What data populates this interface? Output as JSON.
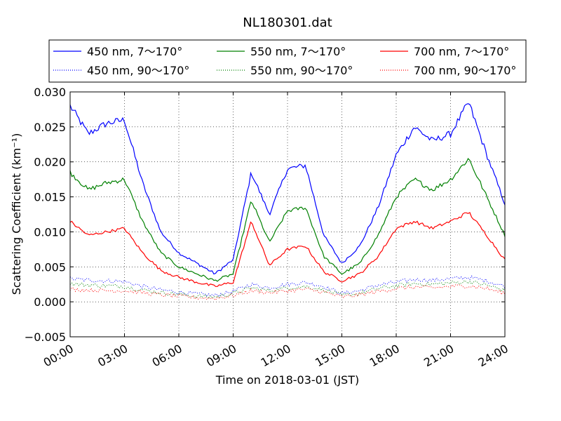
{
  "chart_data": {
    "type": "line",
    "title": "NL180301.dat",
    "xlabel": "Time on 2018-03-01 (JST)",
    "ylabel": "Scattering Coefficient (km⁻¹)",
    "xlim": [
      "00:00",
      "24:00"
    ],
    "ylim": [
      -0.005,
      0.03
    ],
    "x_ticks": [
      "00:00",
      "03:00",
      "06:00",
      "09:00",
      "12:00",
      "15:00",
      "18:00",
      "21:00",
      "24:00"
    ],
    "y_ticks": [
      "−0.005",
      "0.000",
      "0.005",
      "0.010",
      "0.015",
      "0.020",
      "0.025",
      "0.030"
    ],
    "grid": true,
    "legend_position": "top",
    "x": [
      "00:00",
      "01:00",
      "02:00",
      "03:00",
      "04:00",
      "05:00",
      "06:00",
      "07:00",
      "08:00",
      "09:00",
      "10:00",
      "11:00",
      "12:00",
      "13:00",
      "14:00",
      "15:00",
      "16:00",
      "17:00",
      "18:00",
      "19:00",
      "20:00",
      "21:00",
      "22:00",
      "23:00",
      "24:00"
    ],
    "series": [
      {
        "name": "450 nm, 7～170°",
        "color": "#0000ff",
        "style": "solid",
        "values": [
          0.028,
          0.024,
          0.0255,
          0.026,
          0.017,
          0.01,
          0.007,
          0.0055,
          0.004,
          0.006,
          0.0185,
          0.0125,
          0.019,
          0.0195,
          0.0095,
          0.0055,
          0.008,
          0.0135,
          0.021,
          0.025,
          0.023,
          0.024,
          0.0285,
          0.021,
          0.014
        ]
      },
      {
        "name": "450 nm, 90～170°",
        "color": "#0000ff",
        "style": "dotted",
        "values": [
          0.0033,
          0.0031,
          0.003,
          0.0029,
          0.0022,
          0.0017,
          0.0014,
          0.0011,
          0.0009,
          0.0015,
          0.0025,
          0.002,
          0.0025,
          0.0028,
          0.0022,
          0.0012,
          0.0016,
          0.0024,
          0.0028,
          0.0032,
          0.0031,
          0.0033,
          0.0035,
          0.003,
          0.0022
        ]
      },
      {
        "name": "550 nm, 7～170°",
        "color": "#008000",
        "style": "solid",
        "values": [
          0.0185,
          0.016,
          0.017,
          0.0175,
          0.0115,
          0.007,
          0.005,
          0.004,
          0.003,
          0.004,
          0.0145,
          0.0085,
          0.013,
          0.0135,
          0.0065,
          0.004,
          0.0055,
          0.0095,
          0.015,
          0.0175,
          0.016,
          0.0175,
          0.0205,
          0.015,
          0.0095
        ]
      },
      {
        "name": "550 nm, 90～170°",
        "color": "#008000",
        "style": "dotted",
        "values": [
          0.0026,
          0.0024,
          0.0023,
          0.0022,
          0.0017,
          0.0013,
          0.0011,
          0.0008,
          0.0007,
          0.0012,
          0.002,
          0.0016,
          0.002,
          0.0022,
          0.0017,
          0.0009,
          0.0012,
          0.0019,
          0.0023,
          0.0026,
          0.0025,
          0.0027,
          0.0029,
          0.0024,
          0.0016
        ]
      },
      {
        "name": "700 nm, 7～170°",
        "color": "#ff0000",
        "style": "solid",
        "values": [
          0.0115,
          0.0095,
          0.01,
          0.0105,
          0.007,
          0.0045,
          0.0035,
          0.0028,
          0.0022,
          0.0028,
          0.0115,
          0.0052,
          0.0075,
          0.008,
          0.0043,
          0.003,
          0.004,
          0.0065,
          0.0105,
          0.0115,
          0.0105,
          0.0115,
          0.0128,
          0.0095,
          0.006
        ]
      },
      {
        "name": "700 nm, 90～170°",
        "color": "#ff0000",
        "style": "dotted",
        "values": [
          0.0018,
          0.0017,
          0.0016,
          0.0016,
          0.0013,
          0.001,
          0.0008,
          0.0006,
          0.0005,
          0.0009,
          0.0016,
          0.0013,
          0.0016,
          0.0018,
          0.0014,
          0.0007,
          0.001,
          0.0015,
          0.0019,
          0.0021,
          0.002,
          0.0022,
          0.0023,
          0.0019,
          0.0012
        ]
      }
    ]
  }
}
